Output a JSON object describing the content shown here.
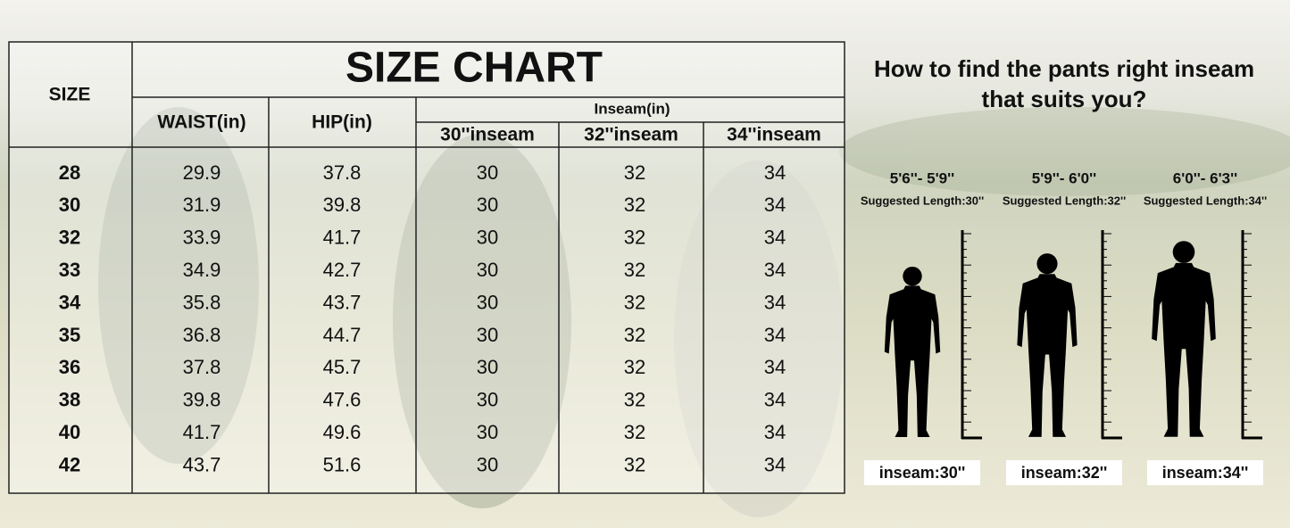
{
  "table": {
    "title": "SIZE CHART",
    "size_header": "SIZE",
    "waist_header": "WAIST(in)",
    "hip_header": "HIP(in)",
    "inseam_header": "Inseam(in)",
    "inseam_subheaders": [
      "30''inseam",
      "32''inseam",
      "34''inseam"
    ],
    "rows": [
      [
        "28",
        "29.9",
        "37.8",
        "30",
        "32",
        "34"
      ],
      [
        "30",
        "31.9",
        "39.8",
        "30",
        "32",
        "34"
      ],
      [
        "32",
        "33.9",
        "41.7",
        "30",
        "32",
        "34"
      ],
      [
        "33",
        "34.9",
        "42.7",
        "30",
        "32",
        "34"
      ],
      [
        "34",
        "35.8",
        "43.7",
        "30",
        "32",
        "34"
      ],
      [
        "35",
        "36.8",
        "44.7",
        "30",
        "32",
        "34"
      ],
      [
        "36",
        "37.8",
        "45.7",
        "30",
        "32",
        "34"
      ],
      [
        "38",
        "39.8",
        "47.6",
        "30",
        "32",
        "34"
      ],
      [
        "40",
        "41.7",
        "49.6",
        "30",
        "32",
        "34"
      ],
      [
        "42",
        "43.7",
        "51.6",
        "30",
        "32",
        "34"
      ]
    ]
  },
  "guide": {
    "title_lines": [
      "How to find the pants right inseam",
      "that suits you?"
    ],
    "figures": [
      {
        "height_range": "5'6''- 5'9''",
        "suggestion": "Suggested Length:30''",
        "inseam": "inseam:30''"
      },
      {
        "height_range": "5'9''- 6'0''",
        "suggestion": "Suggested Length:32''",
        "inseam": "inseam:32''"
      },
      {
        "height_range": "6'0''- 6'3''",
        "suggestion": "Suggested Length:34''",
        "inseam": "inseam:34''"
      }
    ]
  }
}
